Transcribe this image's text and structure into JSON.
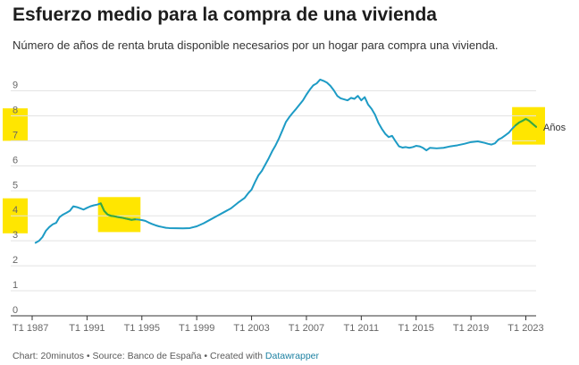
{
  "header": {
    "title": "Esfuerzo medio para la compra de una vivienda",
    "subtitle": "Número de años de renta bruta disponible necesarios por un hogar para compra una vivienda."
  },
  "footer": {
    "chart_credit": "Chart: 20minutos",
    "sep1": " • ",
    "source": "Source: Banco de España",
    "sep2": " • ",
    "created_with": "Created with ",
    "tool": "Datawrapper"
  },
  "colors": {
    "line": "#1d9bc5",
    "highlight_line": "#3aa93a",
    "highlight_box": "#ffe600",
    "grid": "#e3e3e3",
    "axis": "#333333"
  },
  "chart_data": {
    "type": "line",
    "title": "Esfuerzo medio para la compra de una vivienda",
    "subtitle": "Número de años de renta bruta disponible necesarios por un hogar para compra una vivienda.",
    "xlabel": "",
    "ylabel": "",
    "ylim": [
      0,
      9.7
    ],
    "xlim": [
      1987.0,
      2023.75
    ],
    "yticks": [
      0,
      1,
      2,
      3,
      4,
      5,
      6,
      7,
      8,
      9
    ],
    "xticks": [
      {
        "value": 1987.0,
        "label": "T1 1987"
      },
      {
        "value": 1991.0,
        "label": "T1 1991"
      },
      {
        "value": 1995.0,
        "label": "T1 1995"
      },
      {
        "value": 1999.0,
        "label": "T1 1999"
      },
      {
        "value": 2003.0,
        "label": "T1 2003"
      },
      {
        "value": 2007.0,
        "label": "T1 2007"
      },
      {
        "value": 2011.0,
        "label": "T1 2011"
      },
      {
        "value": 2015.0,
        "label": "T1 2015"
      },
      {
        "value": 2019.0,
        "label": "T1 2019"
      },
      {
        "value": 2023.0,
        "label": "T1 2023"
      }
    ],
    "grid": true,
    "series": [
      {
        "name": "Años",
        "color": "#1d9bc5",
        "points": [
          [
            1987.25,
            2.92
          ],
          [
            1987.5,
            3.0
          ],
          [
            1987.75,
            3.15
          ],
          [
            1988.0,
            3.4
          ],
          [
            1988.25,
            3.55
          ],
          [
            1988.5,
            3.66
          ],
          [
            1988.75,
            3.72
          ],
          [
            1989.0,
            3.95
          ],
          [
            1989.25,
            4.05
          ],
          [
            1989.5,
            4.12
          ],
          [
            1989.75,
            4.2
          ],
          [
            1990.0,
            4.38
          ],
          [
            1990.25,
            4.35
          ],
          [
            1990.5,
            4.3
          ],
          [
            1990.75,
            4.25
          ],
          [
            1991.0,
            4.32
          ],
          [
            1991.25,
            4.38
          ],
          [
            1991.5,
            4.42
          ],
          [
            1991.75,
            4.45
          ],
          [
            1992.0,
            4.5
          ],
          [
            1992.25,
            4.2
          ],
          [
            1992.5,
            4.05
          ],
          [
            1992.75,
            4.0
          ],
          [
            1993.0,
            3.98
          ],
          [
            1993.25,
            3.95
          ],
          [
            1993.5,
            3.93
          ],
          [
            1993.75,
            3.9
          ],
          [
            1994.0,
            3.87
          ],
          [
            1994.25,
            3.84
          ],
          [
            1994.5,
            3.86
          ],
          [
            1994.75,
            3.85
          ],
          [
            1995.0,
            3.83
          ],
          [
            1995.25,
            3.8
          ],
          [
            1995.5,
            3.73
          ],
          [
            1995.75,
            3.67
          ],
          [
            1996.0,
            3.62
          ],
          [
            1996.25,
            3.58
          ],
          [
            1996.5,
            3.55
          ],
          [
            1996.75,
            3.52
          ],
          [
            1997.0,
            3.51
          ],
          [
            1998.0,
            3.5
          ],
          [
            1998.5,
            3.51
          ],
          [
            1999.0,
            3.58
          ],
          [
            1999.5,
            3.7
          ],
          [
            2000.0,
            3.85
          ],
          [
            2000.5,
            4.0
          ],
          [
            2001.0,
            4.15
          ],
          [
            2001.5,
            4.3
          ],
          [
            2002.0,
            4.52
          ],
          [
            2002.5,
            4.72
          ],
          [
            2002.75,
            4.9
          ],
          [
            2003.0,
            5.05
          ],
          [
            2003.25,
            5.35
          ],
          [
            2003.5,
            5.62
          ],
          [
            2003.75,
            5.8
          ],
          [
            2004.0,
            6.05
          ],
          [
            2004.25,
            6.3
          ],
          [
            2004.5,
            6.58
          ],
          [
            2004.75,
            6.82
          ],
          [
            2005.0,
            7.1
          ],
          [
            2005.25,
            7.42
          ],
          [
            2005.5,
            7.75
          ],
          [
            2005.75,
            7.95
          ],
          [
            2006.0,
            8.12
          ],
          [
            2006.25,
            8.28
          ],
          [
            2006.5,
            8.45
          ],
          [
            2006.75,
            8.62
          ],
          [
            2007.0,
            8.85
          ],
          [
            2007.25,
            9.05
          ],
          [
            2007.5,
            9.22
          ],
          [
            2007.75,
            9.3
          ],
          [
            2008.0,
            9.45
          ],
          [
            2008.25,
            9.4
          ],
          [
            2008.5,
            9.33
          ],
          [
            2008.75,
            9.2
          ],
          [
            2009.0,
            9.02
          ],
          [
            2009.25,
            8.8
          ],
          [
            2009.5,
            8.7
          ],
          [
            2009.75,
            8.66
          ],
          [
            2010.0,
            8.62
          ],
          [
            2010.25,
            8.72
          ],
          [
            2010.5,
            8.68
          ],
          [
            2010.75,
            8.8
          ],
          [
            2011.0,
            8.62
          ],
          [
            2011.25,
            8.75
          ],
          [
            2011.5,
            8.45
          ],
          [
            2011.75,
            8.28
          ],
          [
            2012.0,
            8.05
          ],
          [
            2012.25,
            7.72
          ],
          [
            2012.5,
            7.48
          ],
          [
            2012.75,
            7.28
          ],
          [
            2013.0,
            7.15
          ],
          [
            2013.25,
            7.2
          ],
          [
            2013.5,
            6.98
          ],
          [
            2013.75,
            6.78
          ],
          [
            2014.0,
            6.73
          ],
          [
            2014.25,
            6.75
          ],
          [
            2014.5,
            6.72
          ],
          [
            2014.75,
            6.75
          ],
          [
            2015.0,
            6.8
          ],
          [
            2015.25,
            6.78
          ],
          [
            2015.5,
            6.72
          ],
          [
            2015.75,
            6.62
          ],
          [
            2016.0,
            6.72
          ],
          [
            2016.5,
            6.7
          ],
          [
            2017.0,
            6.72
          ],
          [
            2017.5,
            6.78
          ],
          [
            2018.0,
            6.82
          ],
          [
            2018.5,
            6.88
          ],
          [
            2019.0,
            6.95
          ],
          [
            2019.5,
            6.98
          ],
          [
            2020.0,
            6.92
          ],
          [
            2020.25,
            6.88
          ],
          [
            2020.5,
            6.85
          ],
          [
            2020.75,
            6.9
          ],
          [
            2021.0,
            7.05
          ],
          [
            2021.25,
            7.12
          ],
          [
            2021.5,
            7.22
          ],
          [
            2021.75,
            7.32
          ],
          [
            2022.0,
            7.48
          ],
          [
            2022.25,
            7.62
          ],
          [
            2022.5,
            7.73
          ],
          [
            2022.75,
            7.8
          ],
          [
            2023.0,
            7.88
          ],
          [
            2023.25,
            7.8
          ],
          [
            2023.5,
            7.68
          ],
          [
            2023.75,
            7.56
          ]
        ]
      }
    ],
    "highlights": [
      {
        "axis": "y",
        "from": 7.0,
        "to": 8.3
      },
      {
        "axis": "y",
        "from": 3.3,
        "to": 4.7
      },
      {
        "axis": "xy",
        "x_from": 1991.8,
        "x_to": 1994.9,
        "y_from": 3.35,
        "y_to": 4.75
      },
      {
        "axis": "xy",
        "x_from": 2022.0,
        "x_to": 2024.4,
        "y_from": 6.85,
        "y_to": 8.35
      }
    ],
    "highlight_segments": [
      {
        "x_from": 1991.8,
        "x_to": 1994.6
      },
      {
        "x_from": 2022.25,
        "x_to": 2023.75
      }
    ]
  }
}
